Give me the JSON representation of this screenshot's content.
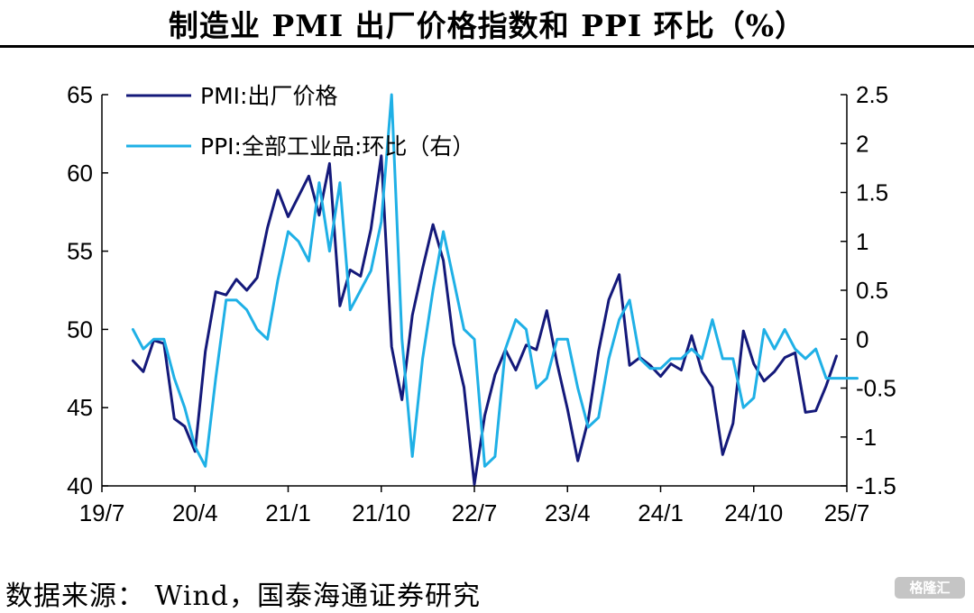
{
  "page": {
    "title": "制造业 PMI 出厂价格指数和 PPI 环比（%）",
    "source": "数据来源： Wind，国泰海通证券研究",
    "logo_text": "格隆汇"
  },
  "chart_data": {
    "type": "line",
    "x_tick_labels": [
      "19/7",
      "20/4",
      "21/1",
      "21/10",
      "22/7",
      "23/4",
      "24/1",
      "24/10",
      "25/7"
    ],
    "left_axis": {
      "ylim": [
        40,
        65
      ],
      "ticks": [
        "40",
        "45",
        "50",
        "55",
        "60",
        "65"
      ]
    },
    "right_axis": {
      "ylim": [
        -1.5,
        2.5
      ],
      "ticks": [
        "-1.5",
        "-1",
        "-0.5",
        "0",
        "0.5",
        "1",
        "1.5",
        "2",
        "2.5"
      ]
    },
    "x_range_months": [
      0,
      72
    ],
    "x_tick_months": [
      0,
      9,
      18,
      27,
      36,
      45,
      54,
      63,
      72
    ],
    "series": [
      {
        "name": "PMI:出厂价格",
        "axis": "left",
        "color": "#14197a",
        "start_month": 3,
        "values": [
          48.0,
          47.3,
          49.3,
          49.1,
          44.3,
          43.8,
          42.2,
          48.6,
          52.4,
          52.2,
          53.2,
          52.5,
          53.3,
          56.5,
          58.9,
          57.2,
          58.5,
          59.8,
          57.3,
          60.6,
          51.5,
          53.8,
          53.4,
          56.4,
          61.1,
          48.9,
          45.5,
          50.9,
          53.9,
          56.7,
          54.4,
          49.1,
          46.3,
          40.1,
          44.5,
          47.1,
          48.7,
          47.4,
          49.0,
          48.7,
          51.2,
          47.8,
          44.9,
          41.6,
          44.2,
          48.6,
          51.9,
          53.5,
          47.7,
          48.2,
          47.7,
          47.0,
          47.8,
          47.4,
          49.6,
          47.3,
          46.3,
          42.0,
          44.0,
          49.9,
          47.8,
          46.7,
          47.3,
          48.2,
          48.5,
          44.7,
          44.8,
          46.4,
          48.3
        ]
      },
      {
        "name": "PPI:全部工业品:环比（右）",
        "axis": "right",
        "color": "#1fb0e6",
        "start_month": 3,
        "values": [
          0.1,
          -0.1,
          0.0,
          0.0,
          -0.4,
          -0.7,
          -1.1,
          -1.3,
          -0.4,
          0.4,
          0.4,
          0.3,
          0.1,
          0.0,
          0.6,
          1.1,
          1.0,
          0.8,
          1.6,
          0.9,
          1.6,
          0.3,
          0.5,
          0.7,
          1.2,
          2.5,
          0.0,
          -1.2,
          -0.2,
          0.5,
          1.1,
          0.6,
          0.1,
          0.0,
          -1.3,
          -1.2,
          -0.1,
          0.2,
          0.1,
          -0.5,
          -0.4,
          0.0,
          0.0,
          -0.5,
          -0.9,
          -0.8,
          -0.2,
          0.2,
          0.4,
          -0.2,
          -0.3,
          -0.3,
          -0.2,
          -0.2,
          -0.1,
          -0.2,
          0.2,
          -0.2,
          -0.2,
          -0.7,
          -0.6,
          0.1,
          -0.1,
          0.1,
          -0.1,
          -0.2,
          -0.1,
          -0.4,
          -0.4,
          -0.4,
          -0.4
        ]
      }
    ]
  }
}
